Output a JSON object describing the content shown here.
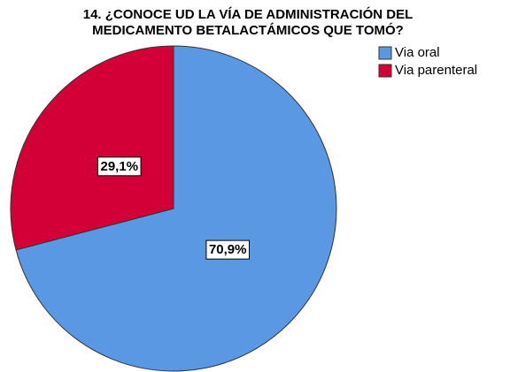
{
  "chart_data": {
    "type": "pie",
    "title": [
      "14. ¿CONOCE UD LA VÍA DE ADMINISTRACIÓN DEL",
      "MEDICAMENTO BETALACTÁMICOS QUE TOMÓ?"
    ],
    "categories": [
      "Via oral",
      "Via parenteral"
    ],
    "values": [
      70.9,
      29.1
    ],
    "value_labels": [
      "70,9%",
      "29,1%"
    ],
    "colors": [
      "#5a98e3",
      "#d20036"
    ],
    "legend": "right"
  }
}
